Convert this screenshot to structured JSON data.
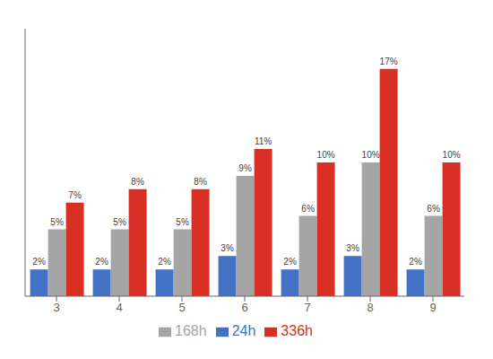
{
  "chart_data": {
    "type": "bar",
    "categories": [
      "3",
      "4",
      "5",
      "6",
      "7",
      "8",
      "9"
    ],
    "series": [
      {
        "name": "24h",
        "color": "#4472C4",
        "values": [
          2,
          2,
          2,
          3,
          2,
          3,
          2
        ],
        "value_labels": [
          "2%",
          "2%",
          "2%",
          "3%",
          "2%",
          "3%",
          "2%"
        ]
      },
      {
        "name": "168h",
        "color": "#A5A5A5",
        "values": [
          5,
          5,
          5,
          9,
          6,
          10,
          6
        ],
        "value_labels": [
          "5%",
          "5%",
          "5%",
          "9%",
          "6%",
          "10%",
          "6%"
        ]
      },
      {
        "name": "336h",
        "color": "#D93025",
        "values": [
          7,
          8,
          8,
          11,
          10,
          17,
          10
        ],
        "value_labels": [
          "7%",
          "8%",
          "8%",
          "11%",
          "10%",
          "17%",
          "10%"
        ]
      }
    ],
    "ylim": [
      0,
      20
    ],
    "grid": false,
    "data_labels": true,
    "tick_labels": "x",
    "legend": "bottom"
  }
}
